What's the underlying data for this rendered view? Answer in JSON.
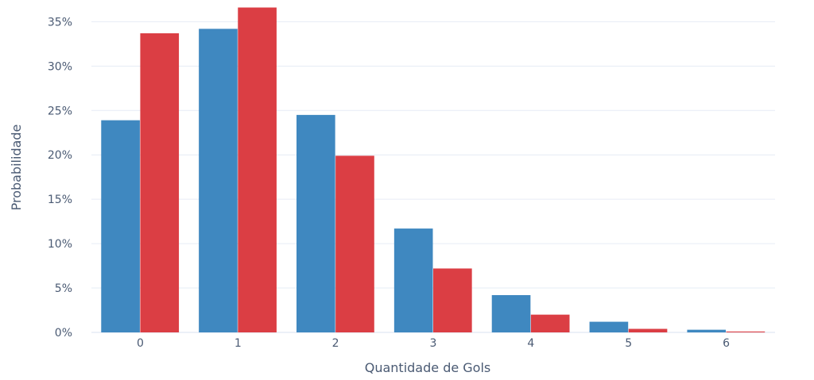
{
  "chart_data": {
    "type": "bar",
    "categories": [
      "0",
      "1",
      "2",
      "3",
      "4",
      "5",
      "6"
    ],
    "series": [
      {
        "color": "#3f88c0",
        "values": [
          23.9,
          34.2,
          24.5,
          11.7,
          4.2,
          1.2,
          0.3
        ]
      },
      {
        "color": "#db3e44",
        "values": [
          33.7,
          36.6,
          19.9,
          7.2,
          2.0,
          0.4,
          0.1
        ]
      }
    ],
    "xlabel": "Quantidade de Gols",
    "ylabel": "Probabilidade",
    "ylim": [
      0,
      37
    ],
    "yticks": [
      0,
      5,
      10,
      15,
      20,
      25,
      30,
      35
    ],
    "ytick_labels": [
      "0%",
      "5%",
      "10%",
      "15%",
      "20%",
      "25%",
      "30%",
      "35%"
    ],
    "grid": true,
    "legend": "none"
  }
}
